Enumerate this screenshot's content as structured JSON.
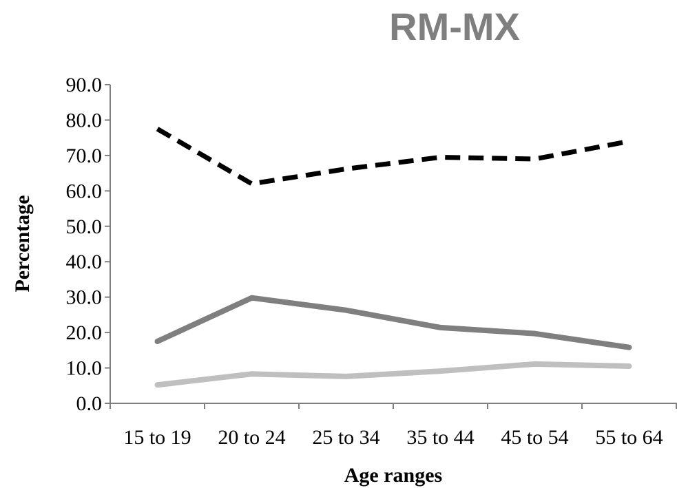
{
  "chart_data": {
    "type": "line",
    "title": "RM-MX",
    "xlabel": "Age ranges",
    "ylabel": "Percentage",
    "categories": [
      "15 to 19",
      "20 to 24",
      "25 to 34",
      "35 to 44",
      "45 to 54",
      "55 to 64"
    ],
    "ylim": [
      0,
      90
    ],
    "yticks": [
      "0.0",
      "10.0",
      "20.0",
      "30.0",
      "40.0",
      "50.0",
      "60.0",
      "70.0",
      "80.0",
      "90.0"
    ],
    "grid": false,
    "legend": "none",
    "series": [
      {
        "values": [
          77.5,
          62.0,
          66.2,
          69.5,
          69.0,
          74.0
        ],
        "color": "#000000",
        "style": "dashed"
      },
      {
        "values": [
          17.5,
          29.8,
          26.3,
          21.4,
          19.7,
          15.8
        ],
        "color": "#7f7f7f",
        "style": "solid"
      },
      {
        "values": [
          5.2,
          8.3,
          7.6,
          9.1,
          11.1,
          10.5
        ],
        "color": "#bfbfbf",
        "style": "solid"
      }
    ]
  }
}
